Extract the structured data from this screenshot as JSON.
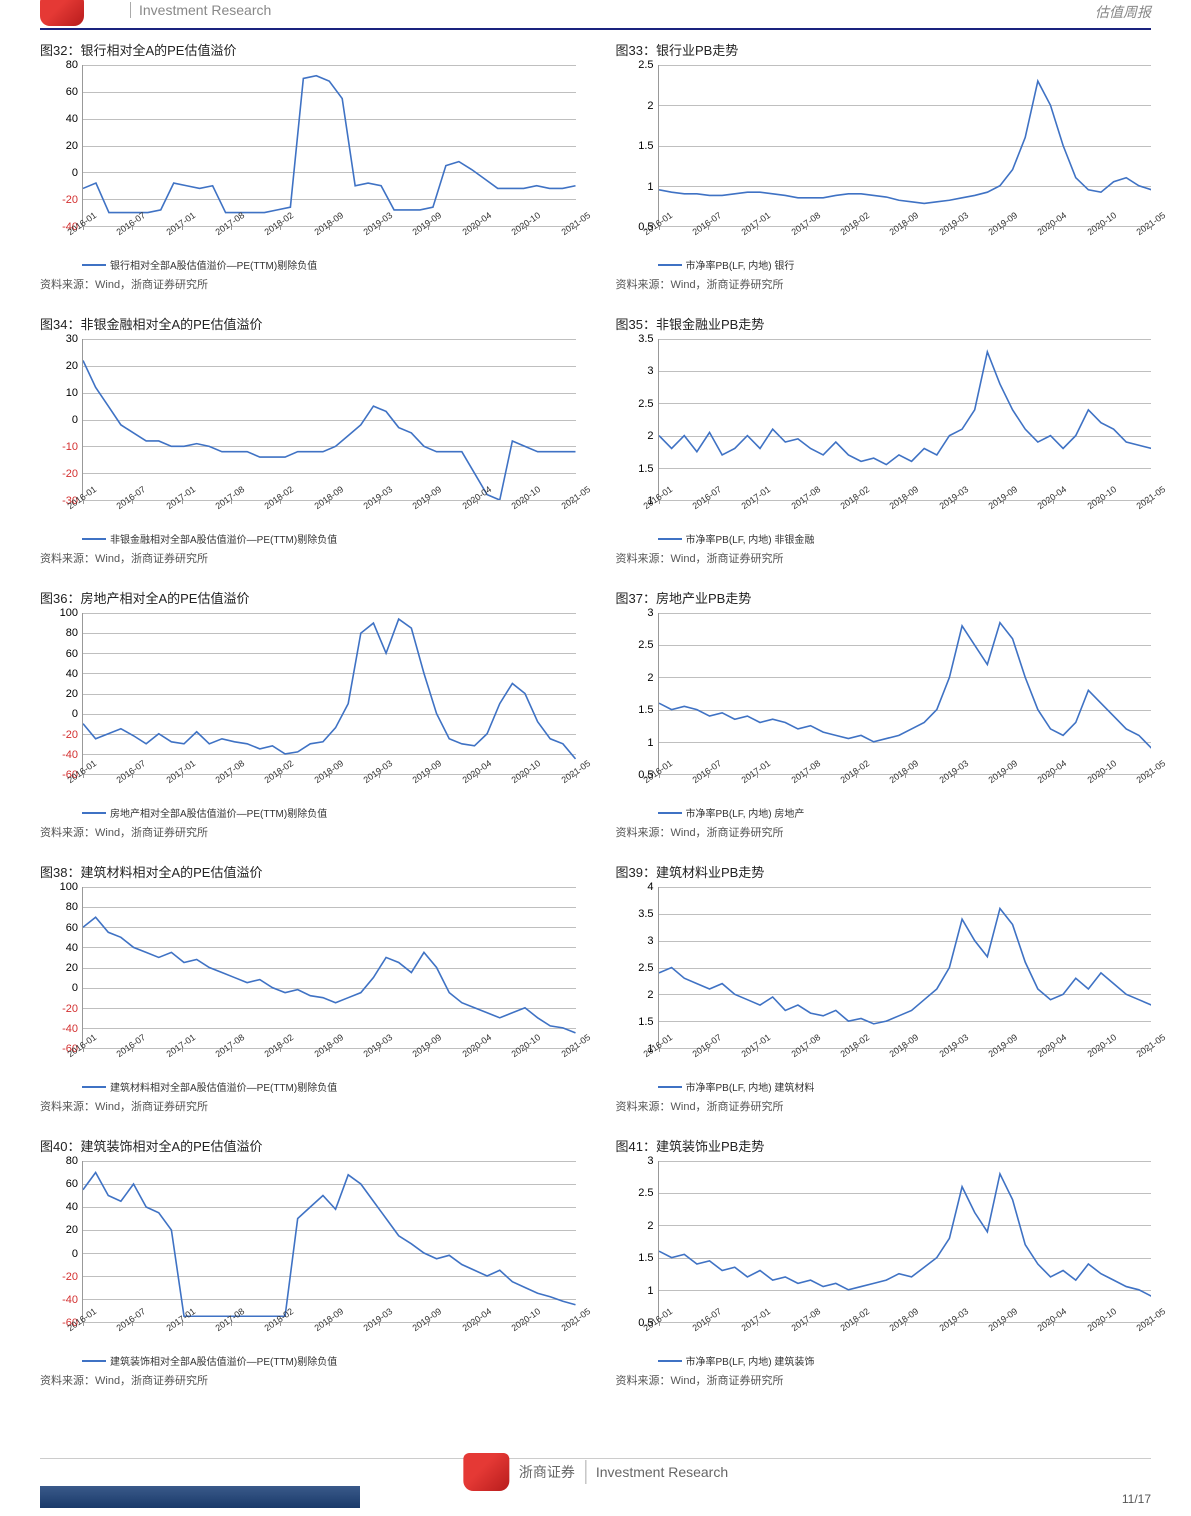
{
  "header": {
    "left": "Investment Research",
    "right": "估值周报"
  },
  "footer": {
    "brand_cn": "浙商证券",
    "brand_en": "Investment Research",
    "page": "11/17"
  },
  "style": {
    "line_color": "#3f72c4",
    "line_width": 1.6,
    "grid_color": "#bfbfbf",
    "axis_color": "#999999",
    "bg_color": "#ffffff",
    "tick_font": 11,
    "xtick_font": 9,
    "title_font": 13,
    "neg_color": "#d32f2f"
  },
  "x_ticks": [
    "2016-01",
    "2016-07",
    "2017-01",
    "2017-08",
    "2018-02",
    "2018-09",
    "2019-03",
    "2019-09",
    "2020-04",
    "2020-10",
    "2021-05"
  ],
  "charts": [
    {
      "title": "图32：银行相对全A的PE估值溢价",
      "legend": "银行相对全部A股估值溢价—PE(TTM)剔除负值",
      "source": "资料来源：Wind，浙商证券研究所",
      "ylim": [
        -40,
        80
      ],
      "ytick_step": 20,
      "series": [
        -12,
        -8,
        -30,
        -30,
        -30,
        -30,
        -28,
        -8,
        -10,
        -12,
        -10,
        -30,
        -30,
        -30,
        -30,
        -28,
        -26,
        70,
        72,
        68,
        55,
        -10,
        -8,
        -10,
        -28,
        -28,
        -28,
        -26,
        5,
        8,
        2,
        -5,
        -12,
        -12,
        -12,
        -10,
        -12,
        -12,
        -10
      ]
    },
    {
      "title": "图33：银行业PB走势",
      "legend": "市净率PB(LF, 内地)   银行",
      "source": "资料来源：Wind，浙商证券研究所",
      "ylim": [
        0.5,
        2.5
      ],
      "ytick_step": 0.5,
      "series": [
        0.95,
        0.92,
        0.9,
        0.9,
        0.88,
        0.88,
        0.9,
        0.92,
        0.92,
        0.9,
        0.88,
        0.85,
        0.85,
        0.85,
        0.88,
        0.9,
        0.9,
        0.88,
        0.86,
        0.82,
        0.8,
        0.78,
        0.8,
        0.82,
        0.85,
        0.88,
        0.92,
        1.0,
        1.2,
        1.6,
        2.3,
        2.0,
        1.5,
        1.1,
        0.95,
        0.92,
        1.05,
        1.1,
        1.0,
        0.95
      ]
    },
    {
      "title": "图34：非银金融相对全A的PE估值溢价",
      "legend": "非银金融相对全部A股估值溢价—PE(TTM)剔除负值",
      "source": "资料来源：Wind，浙商证券研究所",
      "ylim": [
        -30,
        30
      ],
      "ytick_step": 10,
      "series": [
        22,
        12,
        5,
        -2,
        -5,
        -8,
        -8,
        -10,
        -10,
        -9,
        -10,
        -12,
        -12,
        -12,
        -14,
        -14,
        -14,
        -12,
        -12,
        -12,
        -10,
        -6,
        -2,
        5,
        3,
        -3,
        -5,
        -10,
        -12,
        -12,
        -12,
        -20,
        -28,
        -30,
        -8,
        -10,
        -12,
        -12,
        -12,
        -12
      ]
    },
    {
      "title": "图35：非银金融业PB走势",
      "legend": "市净率PB(LF, 内地)   非银金融",
      "source": "资料来源：Wind，浙商证券研究所",
      "ylim": [
        1.0,
        3.5
      ],
      "ytick_step": 0.5,
      "series": [
        2.0,
        1.8,
        2.0,
        1.75,
        2.05,
        1.7,
        1.8,
        2.0,
        1.8,
        2.1,
        1.9,
        1.95,
        1.8,
        1.7,
        1.9,
        1.7,
        1.6,
        1.65,
        1.55,
        1.7,
        1.6,
        1.8,
        1.7,
        2.0,
        2.1,
        2.4,
        3.3,
        2.8,
        2.4,
        2.1,
        1.9,
        2.0,
        1.8,
        2.0,
        2.4,
        2.2,
        2.1,
        1.9,
        1.85,
        1.8
      ]
    },
    {
      "title": "图36：房地产相对全A的PE估值溢价",
      "legend": "房地产相对全部A股估值溢价—PE(TTM)剔除负值",
      "source": "资料来源：Wind，浙商证券研究所",
      "ylim": [
        -60,
        100
      ],
      "ytick_step": 20,
      "series": [
        -10,
        -25,
        -20,
        -15,
        -22,
        -30,
        -20,
        -28,
        -30,
        -18,
        -30,
        -25,
        -28,
        -30,
        -35,
        -32,
        -40,
        -38,
        -30,
        -28,
        -14,
        10,
        80,
        90,
        60,
        94,
        85,
        40,
        0,
        -25,
        -30,
        -32,
        -20,
        10,
        30,
        20,
        -8,
        -25,
        -30,
        -45
      ]
    },
    {
      "title": "图37：房地产业PB走势",
      "legend": "市净率PB(LF, 内地)   房地产",
      "source": "资料来源：Wind，浙商证券研究所",
      "ylim": [
        0.5,
        3.0
      ],
      "ytick_step": 0.5,
      "series": [
        1.6,
        1.5,
        1.55,
        1.5,
        1.4,
        1.45,
        1.35,
        1.4,
        1.3,
        1.35,
        1.3,
        1.2,
        1.25,
        1.15,
        1.1,
        1.05,
        1.1,
        1.0,
        1.05,
        1.1,
        1.2,
        1.3,
        1.5,
        2.0,
        2.8,
        2.5,
        2.2,
        2.85,
        2.6,
        2.0,
        1.5,
        1.2,
        1.1,
        1.3,
        1.8,
        1.6,
        1.4,
        1.2,
        1.1,
        0.9
      ]
    },
    {
      "title": "图38：建筑材料相对全A的PE估值溢价",
      "legend": "建筑材料相对全部A股估值溢价—PE(TTM)剔除负值",
      "source": "资料来源：Wind，浙商证券研究所",
      "ylim": [
        -60,
        100
      ],
      "ytick_step": 20,
      "series": [
        60,
        70,
        55,
        50,
        40,
        35,
        30,
        35,
        25,
        28,
        20,
        15,
        10,
        5,
        8,
        0,
        -5,
        -2,
        -8,
        -10,
        -15,
        -10,
        -5,
        10,
        30,
        25,
        15,
        35,
        20,
        -5,
        -15,
        -20,
        -25,
        -30,
        -25,
        -20,
        -30,
        -38,
        -40,
        -45
      ]
    },
    {
      "title": "图39：建筑材料业PB走势",
      "legend": "市净率PB(LF, 内地)   建筑材料",
      "source": "资料来源：Wind，浙商证券研究所",
      "ylim": [
        1.0,
        4.0
      ],
      "ytick_step": 0.5,
      "series": [
        2.4,
        2.5,
        2.3,
        2.2,
        2.1,
        2.2,
        2.0,
        1.9,
        1.8,
        1.95,
        1.7,
        1.8,
        1.65,
        1.6,
        1.7,
        1.5,
        1.55,
        1.45,
        1.5,
        1.6,
        1.7,
        1.9,
        2.1,
        2.5,
        3.4,
        3.0,
        2.7,
        3.6,
        3.3,
        2.6,
        2.1,
        1.9,
        2.0,
        2.3,
        2.1,
        2.4,
        2.2,
        2.0,
        1.9,
        1.8
      ]
    },
    {
      "title": "图40：建筑装饰相对全A的PE估值溢价",
      "legend": "建筑装饰相对全部A股估值溢价—PE(TTM)剔除负值",
      "source": "资料来源：Wind，浙商证券研究所",
      "ylim": [
        -60,
        80
      ],
      "ytick_step": 20,
      "series": [
        55,
        70,
        50,
        45,
        60,
        40,
        35,
        20,
        -55,
        -55,
        -55,
        -55,
        -55,
        -55,
        -55,
        -55,
        -55,
        30,
        40,
        50,
        38,
        68,
        60,
        45,
        30,
        15,
        8,
        0,
        -5,
        -2,
        -10,
        -15,
        -20,
        -15,
        -25,
        -30,
        -35,
        -38,
        -42,
        -45
      ]
    },
    {
      "title": "图41：建筑装饰业PB走势",
      "legend": "市净率PB(LF, 内地)   建筑装饰",
      "source": "资料来源：Wind，浙商证券研究所",
      "ylim": [
        0.5,
        3.0
      ],
      "ytick_step": 0.5,
      "series": [
        1.6,
        1.5,
        1.55,
        1.4,
        1.45,
        1.3,
        1.35,
        1.2,
        1.3,
        1.15,
        1.2,
        1.1,
        1.15,
        1.05,
        1.1,
        1.0,
        1.05,
        1.1,
        1.15,
        1.25,
        1.2,
        1.35,
        1.5,
        1.8,
        2.6,
        2.2,
        1.9,
        2.8,
        2.4,
        1.7,
        1.4,
        1.2,
        1.3,
        1.15,
        1.4,
        1.25,
        1.15,
        1.05,
        1.0,
        0.9
      ]
    }
  ]
}
